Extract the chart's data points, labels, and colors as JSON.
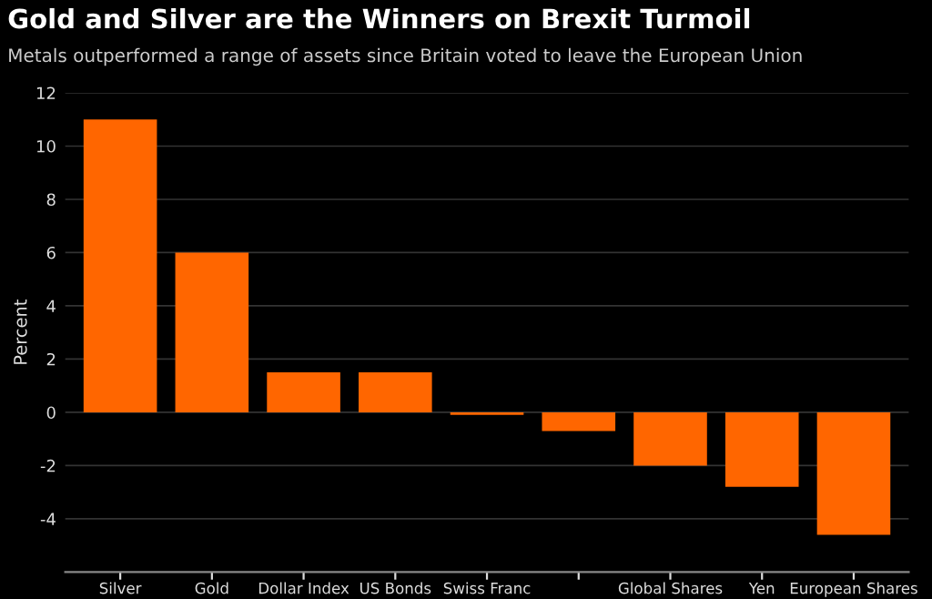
{
  "chart_data": {
    "type": "bar",
    "title": "Gold and Silver are the Winners on Brexit Turmoil",
    "subtitle": "Metals outperformed a range of assets since Britain voted to leave the European Union",
    "ylabel": "Percent",
    "categories": [
      "Silver",
      "Gold",
      "Dollar Index",
      "US Bonds",
      "Swiss Franc",
      null,
      "Global Shares",
      "Yen",
      "European Shares"
    ],
    "values": [
      11.0,
      6.0,
      1.5,
      1.5,
      -0.1,
      -0.7,
      -2.0,
      -2.8,
      -4.6
    ],
    "color": "#ff6600",
    "ylim": [
      -6,
      12
    ],
    "yticks": [
      -4,
      -2,
      0,
      2,
      4,
      6,
      8,
      10,
      12
    ],
    "grid": "y"
  }
}
